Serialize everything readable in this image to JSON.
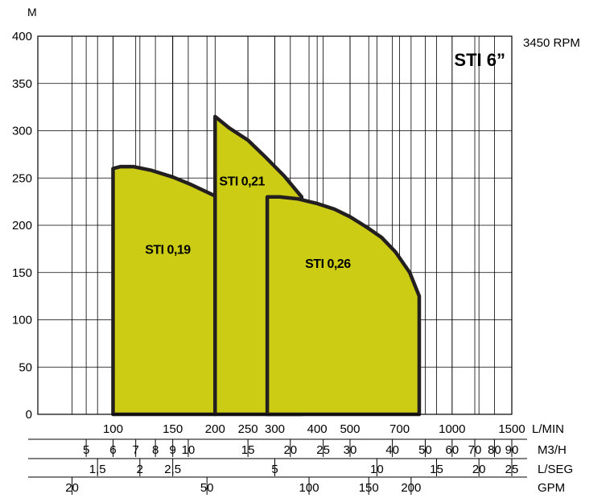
{
  "chart_data": {
    "type": "area",
    "title": "STI 6”",
    "rpm_label": "3450 RPM",
    "ylabel": "M",
    "ylim": [
      0,
      400
    ],
    "yticks": [
      0,
      50,
      100,
      150,
      200,
      250,
      300,
      350,
      400
    ],
    "log_x": true,
    "x_unit": "L/MIN",
    "xlim": [
      60,
      1500
    ],
    "lmin_ticks": [
      {
        "v": 100,
        "label": "100"
      },
      {
        "v": 150,
        "label": "150"
      },
      {
        "v": 200,
        "label": "200"
      },
      {
        "v": 250,
        "label": "250"
      },
      {
        "v": 300,
        "label": "300"
      },
      {
        "v": 400,
        "label": "400"
      },
      {
        "v": 500,
        "label": "500"
      },
      {
        "v": 700,
        "label": "700"
      },
      {
        "v": 1000,
        "label": "1000"
      },
      {
        "v": 1500,
        "label": "1500"
      }
    ],
    "secondary_axes": [
      {
        "unit": "M3/H",
        "factor": 16.667,
        "ticks": [
          {
            "v": 5,
            "label": "5"
          },
          {
            "v": 6,
            "label": "6"
          },
          {
            "v": 7,
            "label": "7"
          },
          {
            "v": 8,
            "label": "8"
          },
          {
            "v": 9,
            "label": "9"
          },
          {
            "v": 10,
            "label": "10"
          },
          {
            "v": 15,
            "label": "15"
          },
          {
            "v": 20,
            "label": "20"
          },
          {
            "v": 25,
            "label": "25"
          },
          {
            "v": 30,
            "label": "30"
          },
          {
            "v": 40,
            "label": "40"
          },
          {
            "v": 50,
            "label": "50"
          },
          {
            "v": 60,
            "label": "60"
          },
          {
            "v": 70,
            "label": "70"
          },
          {
            "v": 80,
            "label": "80"
          },
          {
            "v": 90,
            "label": "90"
          }
        ]
      },
      {
        "unit": "L/SEG",
        "factor": 60,
        "ticks": [
          {
            "v": 1.5,
            "label": "1,5"
          },
          {
            "v": 2,
            "label": "2"
          },
          {
            "v": 2.5,
            "label": "2,5"
          },
          {
            "v": 5,
            "label": "5"
          },
          {
            "v": 10,
            "label": "10"
          },
          {
            "v": 15,
            "label": "15"
          },
          {
            "v": 20,
            "label": "20"
          },
          {
            "v": 25,
            "label": "25"
          }
        ]
      },
      {
        "unit": "GPM",
        "factor": 3.785,
        "ticks": [
          {
            "v": 20,
            "label": "20"
          },
          {
            "v": 50,
            "label": "50"
          },
          {
            "v": 100,
            "label": "100"
          },
          {
            "v": 150,
            "label": "150"
          },
          {
            "v": 200,
            "label": "200"
          }
        ]
      }
    ],
    "fill_color": "#cdcc14",
    "line_color": "#231f20",
    "grid": true,
    "series": [
      {
        "name": "STI 0,19",
        "label_at": {
          "x": 145,
          "y": 170
        },
        "x": [
          100,
          105,
          115,
          130,
          150,
          170,
          200
        ],
        "y": [
          260,
          262,
          262,
          258,
          251,
          243,
          231
        ]
      },
      {
        "name": "STI 0,21",
        "label_at": {
          "x": 240,
          "y": 242
        },
        "x": [
          200,
          220,
          250,
          280,
          320,
          360
        ],
        "y": [
          315,
          303,
          290,
          273,
          252,
          230
        ]
      },
      {
        "name": "STI 0,26",
        "label_at": {
          "x": 430,
          "y": 155
        },
        "x": [
          285,
          310,
          350,
          400,
          450,
          500,
          560,
          620,
          680,
          750,
          800
        ],
        "y": [
          230,
          230,
          228,
          223,
          217,
          209,
          198,
          187,
          172,
          150,
          125
        ]
      }
    ]
  }
}
